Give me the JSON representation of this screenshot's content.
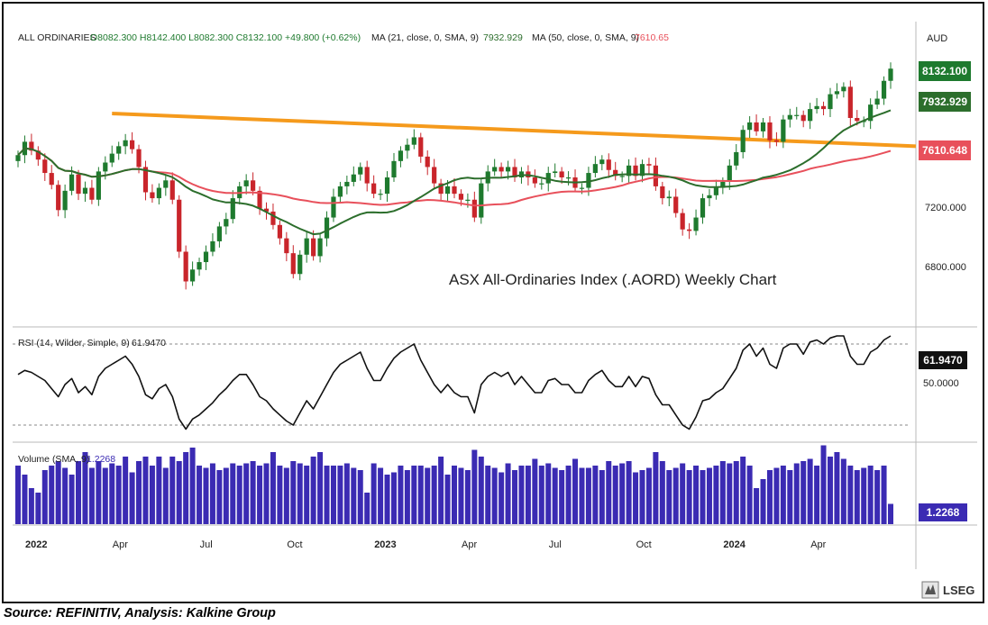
{
  "header": {
    "symbol": "ALL ORDINARIES",
    "ohlc": "O8082.300  H8142.400  L8082.300  C8132.100  +49.800 (+0.62%)",
    "ma21": "MA (21, close, 0, SMA, 9)",
    "ma21_value": "7932.929",
    "ma50": "MA (50, close, 0, SMA, 9)",
    "ma50_value": "7610.65"
  },
  "currency": "AUD",
  "annotation": "ASX All-Ordinaries Index (.AORD) Weekly Chart",
  "price_labels": {
    "close": "8132.100",
    "ma21": "7932.929",
    "ma50": "7610.648"
  },
  "rsi": {
    "label": "RSI (14, Wilder, Simple, 9)",
    "value": "61.9470",
    "mid_label": "50.0000"
  },
  "volume": {
    "label": "Volume (SMA, 9)",
    "value": "1.2268"
  },
  "logo": "LSEG",
  "source": "Source: REFINITIV, Analysis: Kalkine Group",
  "colors": {
    "up": "#1e7a2e",
    "down": "#c9252b",
    "ma21": "#2c6e2c",
    "ma50": "#e8505b",
    "trendline": "#f59a1c",
    "volume": "#3b2bb3",
    "rsi": "#111111"
  },
  "chart_data": [
    {
      "type": "candlestick",
      "title": "ASX All-Ordinaries Index (.AORD) Weekly Chart",
      "x_tick_labels": [
        "2022",
        "Apr",
        "Jul",
        "Oct",
        "2023",
        "Apr",
        "Jul",
        "Oct",
        "2024",
        "Apr"
      ],
      "y_tick_labels": [
        "7200.000",
        "6800.000"
      ],
      "ylim": [
        6650,
        8300
      ],
      "closes": [
        7550,
        7640,
        7580,
        7520,
        7430,
        7350,
        7180,
        7310,
        7420,
        7290,
        7330,
        7250,
        7440,
        7500,
        7560,
        7610,
        7650,
        7590,
        7470,
        7300,
        7260,
        7330,
        7380,
        7250,
        6900,
        6700,
        6780,
        6830,
        6900,
        6970,
        7070,
        7120,
        7260,
        7340,
        7380,
        7310,
        7190,
        7170,
        7080,
        6990,
        6890,
        6750,
        6880,
        6990,
        6870,
        6990,
        7130,
        7270,
        7340,
        7370,
        7420,
        7470,
        7360,
        7290,
        7290,
        7400,
        7510,
        7580,
        7620,
        7670,
        7540,
        7470,
        7360,
        7290,
        7340,
        7290,
        7250,
        7250,
        7130,
        7360,
        7440,
        7470,
        7440,
        7470,
        7400,
        7440,
        7400,
        7360,
        7360,
        7430,
        7440,
        7400,
        7400,
        7330,
        7330,
        7430,
        7490,
        7520,
        7450,
        7410,
        7410,
        7480,
        7410,
        7490,
        7480,
        7340,
        7260,
        7270,
        7160,
        7050,
        7040,
        7130,
        7260,
        7280,
        7330,
        7370,
        7480,
        7570,
        7720,
        7770,
        7710,
        7770,
        7650,
        7640,
        7790,
        7820,
        7820,
        7780,
        7860,
        7880,
        7860,
        7960,
        7980,
        8010,
        7800,
        7780,
        7780,
        7890,
        7930,
        8050,
        8132
      ],
      "series": [
        {
          "name": "MA (21, close, 0, SMA, 9)",
          "last_value": 7932.929
        },
        {
          "name": "MA (50, close, 0, SMA, 9)",
          "last_value": 7610.65
        }
      ]
    },
    {
      "type": "line",
      "title": "RSI (14, Wilder, Simple, 9)",
      "values": [
        55,
        57,
        56,
        54,
        52,
        48,
        44,
        50,
        53,
        46,
        49,
        45,
        54,
        58,
        60,
        62,
        64,
        60,
        54,
        45,
        43,
        48,
        50,
        44,
        33,
        28,
        33,
        35,
        38,
        41,
        45,
        48,
        52,
        55,
        55,
        50,
        44,
        42,
        38,
        35,
        32,
        30,
        36,
        42,
        38,
        44,
        50,
        56,
        60,
        62,
        64,
        66,
        58,
        52,
        52,
        58,
        63,
        66,
        68,
        70,
        62,
        56,
        50,
        46,
        50,
        46,
        44,
        44,
        36,
        50,
        54,
        56,
        54,
        56,
        50,
        54,
        50,
        46,
        46,
        52,
        53,
        50,
        50,
        46,
        46,
        52,
        55,
        57,
        52,
        49,
        49,
        54,
        49,
        54,
        53,
        45,
        40,
        40,
        35,
        30,
        28,
        34,
        42,
        43,
        46,
        48,
        53,
        58,
        67,
        70,
        64,
        68,
        60,
        58,
        68,
        70,
        70,
        65,
        71,
        72,
        70,
        73,
        74,
        74,
        64,
        60,
        60,
        66,
        68,
        72,
        74
      ],
      "ylim": [
        20,
        80
      ]
    },
    {
      "type": "bar",
      "title": "Volume (SMA, 9)",
      "values": [
        1.3,
        1.1,
        0.8,
        0.7,
        1.2,
        1.3,
        1.4,
        1.25,
        1.1,
        1.4,
        1.6,
        1.25,
        1.4,
        1.25,
        1.35,
        1.3,
        1.5,
        1.15,
        1.4,
        1.5,
        1.3,
        1.5,
        1.25,
        1.5,
        1.4,
        1.6,
        1.7,
        1.3,
        1.25,
        1.35,
        1.2,
        1.25,
        1.35,
        1.3,
        1.35,
        1.4,
        1.3,
        1.35,
        1.6,
        1.3,
        1.25,
        1.4,
        1.35,
        1.3,
        1.5,
        1.6,
        1.3,
        1.3,
        1.3,
        1.35,
        1.25,
        1.2,
        0.7,
        1.35,
        1.25,
        1.1,
        1.15,
        1.3,
        1.2,
        1.3,
        1.3,
        1.25,
        1.3,
        1.5,
        1.1,
        1.3,
        1.25,
        1.2,
        1.65,
        1.5,
        1.3,
        1.25,
        1.15,
        1.35,
        1.2,
        1.3,
        1.3,
        1.45,
        1.3,
        1.35,
        1.25,
        1.2,
        1.3,
        1.45,
        1.25,
        1.25,
        1.3,
        1.2,
        1.4,
        1.3,
        1.35,
        1.4,
        1.15,
        1.2,
        1.25,
        1.6,
        1.4,
        1.2,
        1.25,
        1.35,
        1.2,
        1.3,
        1.2,
        1.25,
        1.3,
        1.4,
        1.35,
        1.4,
        1.5,
        1.3,
        0.8,
        1.0,
        1.2,
        1.25,
        1.3,
        1.2,
        1.35,
        1.4,
        1.45,
        1.3,
        1.75,
        1.5,
        1.6,
        1.45,
        1.3,
        1.2,
        1.25,
        1.3,
        1.2,
        1.3,
        0.45
      ],
      "last_value": 1.2268
    }
  ]
}
